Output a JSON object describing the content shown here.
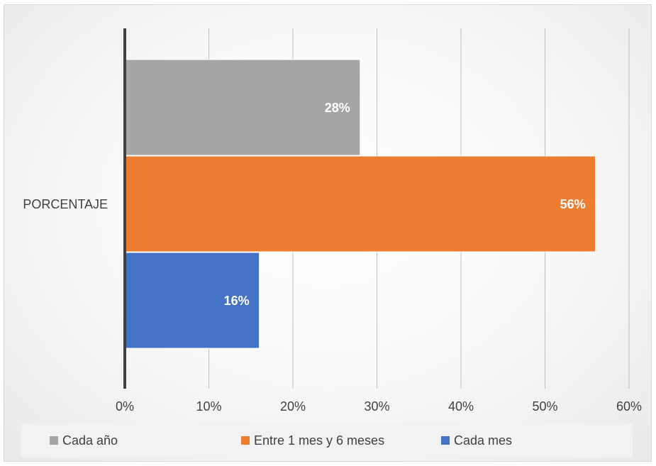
{
  "chart_data": {
    "type": "bar",
    "orientation": "horizontal",
    "categories": [
      "PORCENTAJE"
    ],
    "series": [
      {
        "name": "Cada año",
        "values": [
          0.28
        ],
        "label": "28%",
        "color": "#a5a5a5"
      },
      {
        "name": "Entre 1 mes y 6 meses",
        "values": [
          0.56
        ],
        "label": "56%",
        "color": "#ed7d31"
      },
      {
        "name": "Cada mes",
        "values": [
          0.16
        ],
        "label": "16%",
        "color": "#4472c4"
      }
    ],
    "xlim": [
      0,
      0.6
    ],
    "x_ticks": [
      "0%",
      "10%",
      "20%",
      "30%",
      "40%",
      "50%",
      "60%"
    ],
    "grid": true,
    "legend_position": "bottom"
  }
}
